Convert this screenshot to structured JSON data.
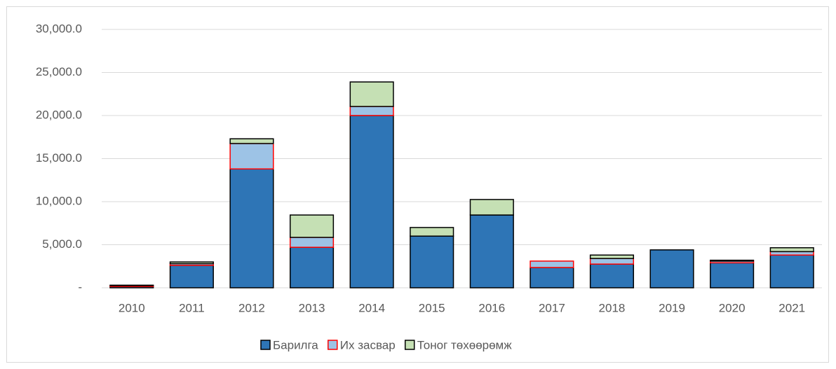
{
  "chart_data": {
    "type": "stacked_bar",
    "categories": [
      "2010",
      "2011",
      "2012",
      "2013",
      "2014",
      "2015",
      "2016",
      "2017",
      "2018",
      "2019",
      "2020",
      "2021"
    ],
    "series": [
      {
        "name": "Барилга",
        "color": "#2e75b6",
        "edge_color": "#000000",
        "values": [
          150,
          2600,
          13800,
          4700,
          20000,
          6000,
          8450,
          2350,
          2750,
          4400,
          2900,
          3800
        ]
      },
      {
        "name": "Их засвар",
        "color": "#9dc3e6",
        "edge_color": "#ff0000",
        "values": [
          100,
          200,
          2950,
          1150,
          1050,
          0,
          0,
          750,
          650,
          0,
          200,
          400
        ]
      },
      {
        "name": "Тоног төхөөрөмж",
        "color": "#c5e0b4",
        "edge_color": "#000000",
        "values": [
          50,
          200,
          550,
          2600,
          2850,
          1000,
          1800,
          0,
          400,
          0,
          100,
          450
        ]
      }
    ],
    "ylim": [
      0,
      30000
    ],
    "yticks": [
      {
        "value": 0,
        "label": "-"
      },
      {
        "value": 5000,
        "label": "5,000.0"
      },
      {
        "value": 10000,
        "label": "10,000.0"
      },
      {
        "value": 15000,
        "label": "15,000.0"
      },
      {
        "value": 20000,
        "label": "20,000.0"
      },
      {
        "value": 25000,
        "label": "25,000.0"
      },
      {
        "value": 30000,
        "label": "30,000.0"
      }
    ],
    "grid": true,
    "legend": "bottom"
  }
}
